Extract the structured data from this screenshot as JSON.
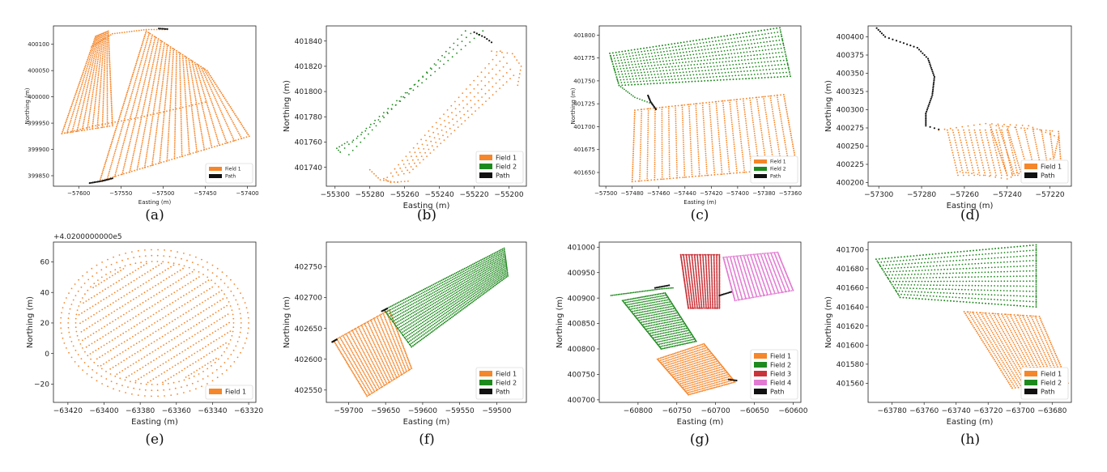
{
  "figure": {
    "captions": [
      "(a)",
      "(b)",
      "(c)",
      "(d)",
      "(e)",
      "(f)",
      "(g)",
      "(h)"
    ]
  },
  "chart_data": [
    {
      "type": "scatter",
      "caption": "(a)",
      "xlabel": "Easting (m)",
      "ylabel": "Northing (m)",
      "xlim": [
        -57630,
        -57390
      ],
      "ylim": [
        399830,
        400135
      ],
      "xticks": [
        -57600,
        -57550,
        -57500,
        -57450,
        -57400
      ],
      "yticks": [
        399850,
        399900,
        399950,
        400000,
        400050,
        400100
      ],
      "legend": "bottom-right",
      "series": [
        {
          "name": "Field 1",
          "color": "#f5862a"
        },
        {
          "name": "Path",
          "color": "#111111"
        }
      ]
    },
    {
      "type": "scatter",
      "caption": "(b)",
      "xlabel": "Easting (m)",
      "ylabel": "Northing (m)",
      "xlim": [
        -55305,
        -55190
      ],
      "ylim": [
        401725,
        401852
      ],
      "xticks": [
        -55300,
        -55280,
        -55260,
        -55240,
        -55220,
        -55200
      ],
      "yticks": [
        401740,
        401760,
        401780,
        401800,
        401820,
        401840
      ],
      "legend": "bottom-right",
      "series": [
        {
          "name": "Field 1",
          "color": "#f5862a"
        },
        {
          "name": "Field 2",
          "color": "#1e8a1e"
        },
        {
          "name": "Path",
          "color": "#111111"
        }
      ]
    },
    {
      "type": "scatter",
      "caption": "(c)",
      "xlabel": "Easting (m)",
      "ylabel": "Northing (m)",
      "xlim": [
        -57505,
        -57352
      ],
      "ylim": [
        401635,
        401810
      ],
      "xticks": [
        -57500,
        -57480,
        -57460,
        -57440,
        -57420,
        -57400,
        -57380,
        -57360
      ],
      "yticks": [
        401650,
        401675,
        401700,
        401725,
        401750,
        401775,
        401800
      ],
      "legend": "bottom-right",
      "series": [
        {
          "name": "Field 1",
          "color": "#f5862a"
        },
        {
          "name": "Field 2",
          "color": "#1e8a1e"
        },
        {
          "name": "Path",
          "color": "#111111"
        }
      ]
    },
    {
      "type": "scatter",
      "caption": "(d)",
      "xlabel": "Easting (m)",
      "ylabel": "Northing (m)",
      "xlim": [
        -57305,
        -57210
      ],
      "ylim": [
        400195,
        400415
      ],
      "xticks": [
        -57300,
        -57280,
        -57260,
        -57240,
        -57220
      ],
      "yticks": [
        400200,
        400225,
        400250,
        400275,
        400300,
        400325,
        400350,
        400375,
        400400
      ],
      "legend": "bottom-right",
      "series": [
        {
          "name": "Field 1",
          "color": "#f5862a"
        },
        {
          "name": "Path",
          "color": "#111111"
        }
      ]
    },
    {
      "type": "scatter",
      "caption": "(e)",
      "xlabel": "Easting (m)",
      "ylabel": "Northing (m)",
      "offset_text": "+4.0200000000e5",
      "xlim": [
        -63428,
        -63316
      ],
      "ylim": [
        -32,
        73
      ],
      "xticks": [
        -63420,
        -63400,
        -63380,
        -63360,
        -63340,
        -63320
      ],
      "yticks": [
        -20,
        0,
        20,
        40,
        60
      ],
      "legend": "bottom-right",
      "series": [
        {
          "name": "Field 1",
          "color": "#f5862a"
        }
      ]
    },
    {
      "type": "scatter",
      "caption": "(f)",
      "xlabel": "Easting (m)",
      "ylabel": "Northing (m)",
      "xlim": [
        -59730,
        -59460
      ],
      "ylim": [
        402530,
        402790
      ],
      "xticks": [
        -59700,
        -59650,
        -59600,
        -59550,
        -59500
      ],
      "yticks": [
        402550,
        402600,
        402650,
        402700,
        402750
      ],
      "legend": "bottom-right",
      "series": [
        {
          "name": "Field 1",
          "color": "#f5862a"
        },
        {
          "name": "Field 2",
          "color": "#1e8a1e"
        },
        {
          "name": "Path",
          "color": "#111111"
        }
      ]
    },
    {
      "type": "scatter",
      "caption": "(g)",
      "xlabel": "Easting (m)",
      "ylabel": "Northing (m)",
      "xlim": [
        -60850,
        -60590
      ],
      "ylim": [
        400695,
        401010
      ],
      "xticks": [
        -60800,
        -60750,
        -60700,
        -60650,
        -60600
      ],
      "yticks": [
        400700,
        400750,
        400800,
        400850,
        400900,
        400950,
        401000
      ],
      "legend": "bottom-right",
      "series": [
        {
          "name": "Field 1",
          "color": "#f5862a"
        },
        {
          "name": "Field 2",
          "color": "#1e8a1e"
        },
        {
          "name": "Field 3",
          "color": "#c8343a"
        },
        {
          "name": "Field 4",
          "color": "#e27ad2"
        },
        {
          "name": "Path",
          "color": "#111111"
        }
      ]
    },
    {
      "type": "scatter",
      "caption": "(h)",
      "xlabel": "Easting (m)",
      "ylabel": "Northing (m)",
      "xlim": [
        -63795,
        -63668
      ],
      "ylim": [
        401540,
        401708
      ],
      "xticks": [
        -63780,
        -63760,
        -63740,
        -63720,
        -63700,
        -63680
      ],
      "yticks": [
        401560,
        401580,
        401600,
        401620,
        401640,
        401660,
        401680,
        401700
      ],
      "legend": "bottom-right",
      "series": [
        {
          "name": "Field 1",
          "color": "#f5862a"
        },
        {
          "name": "Field 2",
          "color": "#1e8a1e"
        },
        {
          "name": "Path",
          "color": "#111111"
        }
      ]
    }
  ]
}
